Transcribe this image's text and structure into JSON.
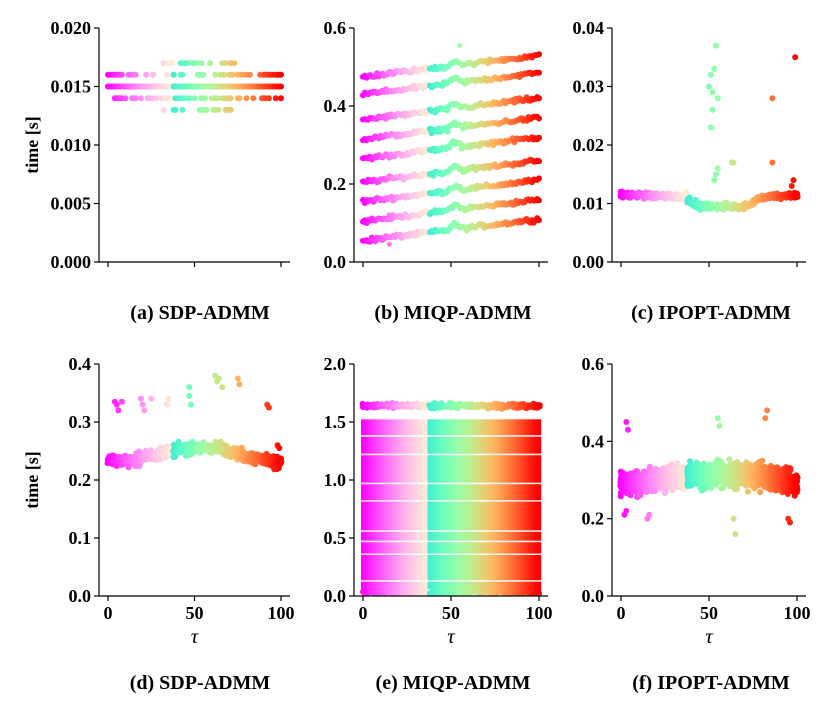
{
  "chart_data": [
    {
      "type": "scatter",
      "panel": "a",
      "caption": "(a)  SDP-ADMM",
      "ylabel": "time [s]",
      "xlabel": "",
      "xlim": [
        0,
        100
      ],
      "xticks": [
        0,
        50,
        100
      ],
      "show_x_ticklabels": false,
      "ylim": [
        0,
        0.02
      ],
      "yticks": [
        0,
        0.005,
        0.01,
        0.015,
        0.02
      ],
      "ytick_labels": [
        "0.000",
        "0.005",
        "0.010",
        "0.015",
        "0.020"
      ],
      "colormap": "rainbow (color encodes τ, 0→100)",
      "pattern": "banded",
      "n_points": 101,
      "levels": [
        {
          "y": 0.015,
          "coverage": 1.0
        },
        {
          "y": 0.014,
          "coverage": 0.45
        },
        {
          "y": 0.016,
          "coverage": 0.4
        },
        {
          "y": 0.017,
          "coverage": 0.06
        },
        {
          "y": 0.013,
          "coverage": 0.05
        }
      ]
    },
    {
      "type": "scatter",
      "panel": "b",
      "caption": "(b)  MIQP-ADMM",
      "ylabel": "",
      "xlabel": "",
      "xlim": [
        0,
        100
      ],
      "xticks": [
        0,
        50,
        100
      ],
      "show_x_ticklabels": false,
      "ylim": [
        0,
        0.6
      ],
      "yticks": [
        0,
        0.2,
        0.4,
        0.6
      ],
      "ytick_labels": [
        "0.0",
        "0.2",
        "0.4",
        "0.6"
      ],
      "colormap": "rainbow (color encodes τ, 0→100)",
      "pattern": "stacked_lines",
      "n_points": 101,
      "line_starts": [
        0.055,
        0.105,
        0.155,
        0.205,
        0.265,
        0.315,
        0.365,
        0.43,
        0.475
      ],
      "line_rise": 0.055,
      "line_noise": 0.008
    },
    {
      "type": "scatter",
      "panel": "c",
      "caption": "(c) IPOPT-ADMM",
      "ylabel": "",
      "xlabel": "",
      "xlim": [
        0,
        100
      ],
      "xticks": [
        0,
        50,
        100
      ],
      "show_x_ticklabels": false,
      "ylim": [
        0,
        0.04
      ],
      "yticks": [
        0,
        0.01,
        0.02,
        0.03,
        0.04
      ],
      "ytick_labels": [
        "0.00",
        "0.01",
        "0.02",
        "0.03",
        "0.04"
      ],
      "colormap": "rainbow (color encodes τ, 0→100)",
      "pattern": "profile",
      "n_points": 101,
      "points_per_x": 4,
      "profile": [
        [
          0,
          0.0115
        ],
        [
          35,
          0.0112
        ],
        [
          45,
          0.0095
        ],
        [
          70,
          0.0095
        ],
        [
          80,
          0.011
        ],
        [
          100,
          0.0115
        ]
      ],
      "noise": 0.0008,
      "outliers": [
        [
          50,
          0.03
        ],
        [
          51,
          0.032
        ],
        [
          52,
          0.029
        ],
        [
          53,
          0.033
        ],
        [
          54,
          0.037
        ],
        [
          55,
          0.028
        ],
        [
          52,
          0.026
        ],
        [
          51,
          0.023
        ],
        [
          54,
          0.015
        ],
        [
          55,
          0.016
        ],
        [
          53,
          0.014
        ],
        [
          63,
          0.017
        ],
        [
          64,
          0.017
        ],
        [
          86,
          0.028
        ],
        [
          86,
          0.017
        ],
        [
          99,
          0.035
        ],
        [
          97,
          0.013
        ],
        [
          98,
          0.014
        ],
        [
          37,
          0.012
        ]
      ]
    },
    {
      "type": "scatter",
      "panel": "d",
      "caption": "(d) SDP-ADMM",
      "ylabel": "time [s]",
      "xlabel": "τ",
      "xlim": [
        0,
        100
      ],
      "xticks": [
        0,
        50,
        100
      ],
      "show_x_ticklabels": true,
      "xtick_labels": [
        "0",
        "50",
        "100"
      ],
      "ylim": [
        0,
        0.4
      ],
      "yticks": [
        0,
        0.1,
        0.2,
        0.3,
        0.4
      ],
      "ytick_labels": [
        "0.0",
        "0.1",
        "0.2",
        "0.3",
        "0.4"
      ],
      "colormap": "rainbow (color encodes τ, 0→100)",
      "pattern": "profile",
      "n_points": 101,
      "points_per_x": 6,
      "profile": [
        [
          0,
          0.232
        ],
        [
          15,
          0.235
        ],
        [
          35,
          0.25
        ],
        [
          50,
          0.255
        ],
        [
          65,
          0.255
        ],
        [
          80,
          0.24
        ],
        [
          100,
          0.23
        ]
      ],
      "noise": 0.015,
      "outliers": [
        [
          4,
          0.335
        ],
        [
          5,
          0.33
        ],
        [
          6,
          0.32
        ],
        [
          8,
          0.335
        ],
        [
          19,
          0.34
        ],
        [
          20,
          0.33
        ],
        [
          21,
          0.32
        ],
        [
          25,
          0.34
        ],
        [
          34,
          0.33
        ],
        [
          35,
          0.34
        ],
        [
          47,
          0.36
        ],
        [
          47,
          0.345
        ],
        [
          48,
          0.33
        ],
        [
          62,
          0.38
        ],
        [
          63,
          0.37
        ],
        [
          64,
          0.375
        ],
        [
          66,
          0.36
        ],
        [
          75,
          0.375
        ],
        [
          76,
          0.365
        ],
        [
          92,
          0.33
        ],
        [
          93,
          0.325
        ],
        [
          98,
          0.26
        ],
        [
          99,
          0.255
        ]
      ]
    },
    {
      "type": "scatter",
      "panel": "e",
      "caption": "(e) MIQP-ADMM",
      "ylabel": "",
      "xlabel": "τ",
      "xlim": [
        0,
        100
      ],
      "xticks": [
        0,
        50,
        100
      ],
      "show_x_ticklabels": true,
      "xtick_labels": [
        "0",
        "50",
        "100"
      ],
      "ylim": [
        0,
        2.0
      ],
      "yticks": [
        0,
        0.5,
        1.0,
        1.5,
        2.0
      ],
      "ytick_labels": [
        "0.0",
        "0.5",
        "1.0",
        "1.5",
        "2.0"
      ],
      "colormap": "rainbow (color encodes τ, 0→100)",
      "pattern": "dense_fill",
      "n_points": 101,
      "fill_min": 0.02,
      "fill_max": 1.53,
      "top_band": 1.64,
      "top_noise": 0.03,
      "band_gaps": [
        1.53,
        1.38,
        1.22,
        0.97,
        0.82,
        0.56,
        0.47,
        0.36,
        0.13
      ]
    },
    {
      "type": "scatter",
      "panel": "f",
      "caption": "(f) IPOPT-ADMM",
      "ylabel": "",
      "xlabel": "τ",
      "xlim": [
        0,
        100
      ],
      "xticks": [
        0,
        50,
        100
      ],
      "show_x_ticklabels": true,
      "xtick_labels": [
        "0",
        "50",
        "100"
      ],
      "ylim": [
        0,
        0.6
      ],
      "yticks": [
        0,
        0.2,
        0.4,
        0.6
      ],
      "ytick_labels": [
        "0.0",
        "0.2",
        "0.4",
        "0.6"
      ],
      "colormap": "rainbow (color encodes τ, 0→100)",
      "pattern": "profile",
      "n_points": 101,
      "points_per_x": 14,
      "profile": [
        [
          0,
          0.29
        ],
        [
          20,
          0.3
        ],
        [
          40,
          0.31
        ],
        [
          60,
          0.315
        ],
        [
          80,
          0.31
        ],
        [
          100,
          0.29
        ]
      ],
      "noise": 0.045,
      "outliers": [
        [
          3,
          0.45
        ],
        [
          4,
          0.43
        ],
        [
          2,
          0.21
        ],
        [
          3,
          0.22
        ],
        [
          15,
          0.2
        ],
        [
          16,
          0.21
        ],
        [
          55,
          0.46
        ],
        [
          56,
          0.44
        ],
        [
          65,
          0.16
        ],
        [
          64,
          0.2
        ],
        [
          83,
          0.48
        ],
        [
          82,
          0.46
        ],
        [
          96,
          0.19
        ],
        [
          95,
          0.2
        ]
      ]
    }
  ]
}
